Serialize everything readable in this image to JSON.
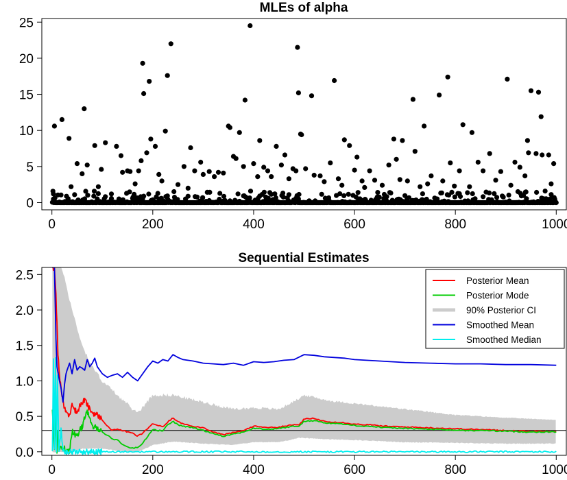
{
  "chart_data": [
    {
      "type": "scatter",
      "title": "MLEs of alpha",
      "xlabel": "",
      "ylabel": "",
      "xlim": [
        -20,
        1020
      ],
      "ylim": [
        -1,
        25.5
      ],
      "xticks": [
        0,
        200,
        400,
        600,
        800,
        1000
      ],
      "yticks": [
        0,
        5,
        10,
        15,
        20,
        25
      ],
      "xtick_labels": [
        "0",
        "200",
        "400",
        "600",
        "800",
        "1000"
      ],
      "ytick_labels": [
        "0",
        "5",
        "10",
        "15",
        "20",
        "25"
      ],
      "n": 1000,
      "zero_fraction": 0.6,
      "series": [
        {
          "marker": "filled-circle",
          "color": "#000000",
          "points": [
            [
              3,
              1.2
            ],
            [
              5,
              10.6
            ],
            [
              20,
              11.5
            ],
            [
              34,
              8.9
            ],
            [
              38,
              2.2
            ],
            [
              45,
              1.1
            ],
            [
              50,
              5.4
            ],
            [
              60,
              4.0
            ],
            [
              64,
              13.0
            ],
            [
              70,
              5.2
            ],
            [
              85,
              7.9
            ],
            [
              92,
              2.2
            ],
            [
              98,
              4.6
            ],
            [
              106,
              8.3
            ],
            [
              118,
              1.2
            ],
            [
              128,
              7.8
            ],
            [
              137,
              6.5
            ],
            [
              140,
              4.2
            ],
            [
              150,
              4.4
            ],
            [
              155,
              4.3
            ],
            [
              165,
              2.6
            ],
            [
              172,
              4.4
            ],
            [
              177,
              5.8
            ],
            [
              180,
              19.3
            ],
            [
              182,
              15.1
            ],
            [
              188,
              6.9
            ],
            [
              193,
              16.8
            ],
            [
              196,
              8.8
            ],
            [
              205,
              7.8
            ],
            [
              212,
              3.9
            ],
            [
              218,
              3.0
            ],
            [
              225,
              9.9
            ],
            [
              229,
              17.6
            ],
            [
              236,
              22.0
            ],
            [
              250,
              2.5
            ],
            [
              262,
              5.0
            ],
            [
              270,
              2.0
            ],
            [
              275,
              7.6
            ],
            [
              283,
              4.4
            ],
            [
              295,
              5.6
            ],
            [
              300,
              3.9
            ],
            [
              312,
              4.3
            ],
            [
              322,
              3.6
            ],
            [
              330,
              4.2
            ],
            [
              340,
              4.1
            ],
            [
              350,
              10.6
            ],
            [
              353,
              10.4
            ],
            [
              360,
              6.4
            ],
            [
              365,
              6.1
            ],
            [
              372,
              9.7
            ],
            [
              380,
              5.0
            ],
            [
              383,
              14.2
            ],
            [
              393,
              24.5
            ],
            [
              400,
              5.4
            ],
            [
              408,
              3.6
            ],
            [
              412,
              8.6
            ],
            [
              420,
              4.9
            ],
            [
              428,
              4.4
            ],
            [
              435,
              3.6
            ],
            [
              445,
              7.8
            ],
            [
              455,
              5.2
            ],
            [
              462,
              6.6
            ],
            [
              470,
              3.3
            ],
            [
              478,
              4.7
            ],
            [
              484,
              4.4
            ],
            [
              487,
              21.5
            ],
            [
              489,
              15.2
            ],
            [
              493,
              9.5
            ],
            [
              495,
              9.4
            ],
            [
              503,
              4.7
            ],
            [
              515,
              14.8
            ],
            [
              520,
              3.8
            ],
            [
              532,
              3.7
            ],
            [
              540,
              2.9
            ],
            [
              552,
              5.5
            ],
            [
              560,
              16.9
            ],
            [
              568,
              3.3
            ],
            [
              575,
              2.4
            ],
            [
              580,
              8.7
            ],
            [
              590,
              7.9
            ],
            [
              600,
              4.5
            ],
            [
              605,
              6.3
            ],
            [
              615,
              3.0
            ],
            [
              620,
              2.1
            ],
            [
              630,
              4.4
            ],
            [
              640,
              3.1
            ],
            [
              655,
              2.4
            ],
            [
              668,
              5.2
            ],
            [
              678,
              8.8
            ],
            [
              683,
              6.0
            ],
            [
              690,
              3.2
            ],
            [
              695,
              8.6
            ],
            [
              705,
              3.0
            ],
            [
              716,
              14.3
            ],
            [
              720,
              7.1
            ],
            [
              730,
              2.2
            ],
            [
              738,
              10.6
            ],
            [
              745,
              2.6
            ],
            [
              752,
              3.7
            ],
            [
              768,
              14.9
            ],
            [
              775,
              3.0
            ],
            [
              785,
              17.4
            ],
            [
              790,
              5.5
            ],
            [
              798,
              2.3
            ],
            [
              808,
              4.4
            ],
            [
              815,
              10.8
            ],
            [
              828,
              2.2
            ],
            [
              833,
              9.7
            ],
            [
              845,
              5.6
            ],
            [
              855,
              4.4
            ],
            [
              868,
              6.8
            ],
            [
              880,
              3.1
            ],
            [
              890,
              4.3
            ],
            [
              903,
              17.1
            ],
            [
              910,
              2.4
            ],
            [
              918,
              5.6
            ],
            [
              928,
              4.9
            ],
            [
              938,
              3.7
            ],
            [
              943,
              8.6
            ],
            [
              945,
              6.9
            ],
            [
              950,
              15.5
            ],
            [
              960,
              6.8
            ],
            [
              965,
              15.3
            ],
            [
              970,
              11.9
            ],
            [
              972,
              6.6
            ],
            [
              978,
              1.6
            ],
            [
              985,
              6.6
            ],
            [
              990,
              2.6
            ],
            [
              995,
              5.4
            ]
          ]
        }
      ]
    },
    {
      "type": "line",
      "title": "Sequential Estimates",
      "xlabel": "",
      "ylabel": "",
      "xlim": [
        -20,
        1020
      ],
      "ylim": [
        -0.05,
        2.6
      ],
      "xticks": [
        0,
        200,
        400,
        600,
        800,
        1000
      ],
      "yticks": [
        0.0,
        0.5,
        1.0,
        1.5,
        2.0,
        2.5
      ],
      "xtick_labels": [
        "0",
        "200",
        "400",
        "600",
        "800",
        "1000"
      ],
      "ytick_labels": [
        "0.0",
        "0.5",
        "1.0",
        "1.5",
        "2.0",
        "2.5"
      ],
      "hline": 0.3,
      "legend": {
        "position": "top-right",
        "entries": [
          {
            "label": "Posterior Mean",
            "color": "#ff0000"
          },
          {
            "label": "Posterior Mode",
            "color": "#00cc00"
          },
          {
            "label": "90% Posterior CI",
            "color": "#cccccc"
          },
          {
            "label": "Smoothed Mean",
            "color": "#0000dd"
          },
          {
            "label": "Smoothed Median",
            "color": "#00eeee"
          }
        ]
      },
      "band": {
        "name": "90% Posterior CI",
        "color": "#cccccc",
        "x": [
          1,
          10,
          20,
          40,
          60,
          80,
          100,
          130,
          160,
          170,
          200,
          240,
          300,
          360,
          400,
          450,
          490,
          500,
          550,
          600,
          700,
          800,
          900,
          1000
        ],
        "lower": [
          0.0,
          0.0,
          0.0,
          0.0,
          0.05,
          0.05,
          0.05,
          0.02,
          0.0,
          0.0,
          0.1,
          0.15,
          0.12,
          0.1,
          0.14,
          0.14,
          0.2,
          0.2,
          0.18,
          0.17,
          0.14,
          0.13,
          0.12,
          0.12
        ],
        "upper": [
          2.6,
          2.6,
          2.6,
          2.0,
          1.5,
          1.2,
          1.0,
          0.8,
          0.6,
          0.55,
          0.8,
          0.8,
          0.7,
          0.6,
          0.62,
          0.6,
          0.75,
          0.8,
          0.72,
          0.68,
          0.6,
          0.52,
          0.48,
          0.45
        ]
      },
      "series": [
        {
          "name": "Posterior Mean",
          "color": "#ff0000",
          "x": [
            1,
            5,
            8,
            12,
            16,
            20,
            25,
            30,
            35,
            40,
            45,
            50,
            55,
            60,
            65,
            70,
            75,
            80,
            90,
            100,
            110,
            120,
            130,
            140,
            150,
            160,
            170,
            180,
            190,
            200,
            210,
            220,
            230,
            240,
            250,
            260,
            280,
            300,
            320,
            340,
            360,
            380,
            400,
            420,
            440,
            460,
            480,
            490,
            500,
            520,
            540,
            560,
            580,
            600,
            630,
            660,
            700,
            740,
            780,
            820,
            860,
            900,
            940,
            980,
            1000
          ],
          "y": [
            2.6,
            2.6,
            2.2,
            1.4,
            1.0,
            0.8,
            0.6,
            0.55,
            0.5,
            0.7,
            0.6,
            0.55,
            0.65,
            0.68,
            0.74,
            0.66,
            0.6,
            0.55,
            0.52,
            0.45,
            0.36,
            0.3,
            0.32,
            0.3,
            0.28,
            0.26,
            0.22,
            0.26,
            0.33,
            0.4,
            0.37,
            0.35,
            0.42,
            0.48,
            0.42,
            0.4,
            0.36,
            0.34,
            0.28,
            0.24,
            0.27,
            0.3,
            0.36,
            0.35,
            0.34,
            0.36,
            0.38,
            0.38,
            0.46,
            0.47,
            0.43,
            0.42,
            0.41,
            0.39,
            0.38,
            0.36,
            0.35,
            0.34,
            0.33,
            0.32,
            0.31,
            0.3,
            0.29,
            0.29,
            0.29
          ]
        },
        {
          "name": "Posterior Mode",
          "color": "#00cc00",
          "x": [
            1,
            5,
            8,
            10,
            12,
            15,
            18,
            20,
            25,
            28,
            30,
            35,
            40,
            45,
            50,
            55,
            60,
            65,
            70,
            75,
            80,
            90,
            100,
            110,
            120,
            130,
            140,
            150,
            160,
            170,
            180,
            190,
            200,
            210,
            220,
            230,
            240,
            250,
            260,
            280,
            300,
            320,
            340,
            360,
            380,
            400,
            420,
            440,
            460,
            480,
            490,
            500,
            520,
            540,
            560,
            580,
            600,
            630,
            660,
            700,
            740,
            780,
            820,
            860,
            900,
            940,
            980,
            1000
          ],
          "y": [
            0.6,
            0.0,
            0.7,
            0.0,
            0.3,
            0.0,
            0.1,
            0.0,
            0.05,
            0.0,
            0.0,
            0.02,
            0.3,
            0.25,
            0.2,
            0.3,
            0.35,
            0.5,
            0.58,
            0.45,
            0.35,
            0.34,
            0.28,
            0.23,
            0.18,
            0.17,
            0.1,
            0.07,
            0.05,
            0.06,
            0.12,
            0.22,
            0.32,
            0.3,
            0.3,
            0.38,
            0.43,
            0.38,
            0.36,
            0.34,
            0.3,
            0.26,
            0.22,
            0.25,
            0.28,
            0.33,
            0.32,
            0.32,
            0.34,
            0.36,
            0.36,
            0.43,
            0.44,
            0.41,
            0.4,
            0.39,
            0.37,
            0.36,
            0.34,
            0.33,
            0.32,
            0.31,
            0.3,
            0.3,
            0.29,
            0.28,
            0.28,
            0.28
          ]
        },
        {
          "name": "Smoothed Mean",
          "color": "#0000dd",
          "x": [
            1,
            5,
            8,
            10,
            15,
            18,
            20,
            22,
            25,
            28,
            30,
            35,
            40,
            45,
            50,
            55,
            60,
            65,
            70,
            75,
            80,
            85,
            90,
            100,
            110,
            120,
            130,
            140,
            150,
            160,
            170,
            180,
            190,
            200,
            210,
            220,
            230,
            240,
            250,
            260,
            280,
            300,
            320,
            340,
            360,
            380,
            400,
            420,
            440,
            460,
            480,
            500,
            520,
            540,
            560,
            580,
            600,
            650,
            700,
            750,
            800,
            850,
            900,
            950,
            1000
          ],
          "y": [
            2.6,
            2.6,
            1.6,
            1.2,
            1.0,
            0.9,
            0.8,
            0.7,
            0.95,
            1.1,
            1.15,
            1.25,
            1.1,
            1.3,
            1.15,
            1.2,
            1.18,
            1.15,
            1.3,
            1.2,
            1.25,
            1.32,
            1.2,
            1.1,
            1.05,
            1.08,
            1.1,
            1.05,
            1.12,
            1.05,
            1.0,
            1.1,
            1.2,
            1.28,
            1.25,
            1.3,
            1.28,
            1.37,
            1.33,
            1.3,
            1.28,
            1.25,
            1.24,
            1.23,
            1.25,
            1.22,
            1.27,
            1.26,
            1.27,
            1.29,
            1.3,
            1.37,
            1.36,
            1.34,
            1.33,
            1.32,
            1.3,
            1.28,
            1.26,
            1.25,
            1.24,
            1.24,
            1.23,
            1.23,
            1.22
          ]
        },
        {
          "name": "Smoothed Median",
          "color": "#00eeee",
          "x": [
            1,
            3,
            5,
            7,
            9,
            11,
            14,
            18,
            22,
            25,
            1000
          ],
          "y": [
            0.0,
            1.35,
            0.0,
            1.35,
            0.0,
            1.05,
            0.0,
            0.3,
            0.05,
            0.0,
            0.0
          ]
        }
      ]
    }
  ]
}
